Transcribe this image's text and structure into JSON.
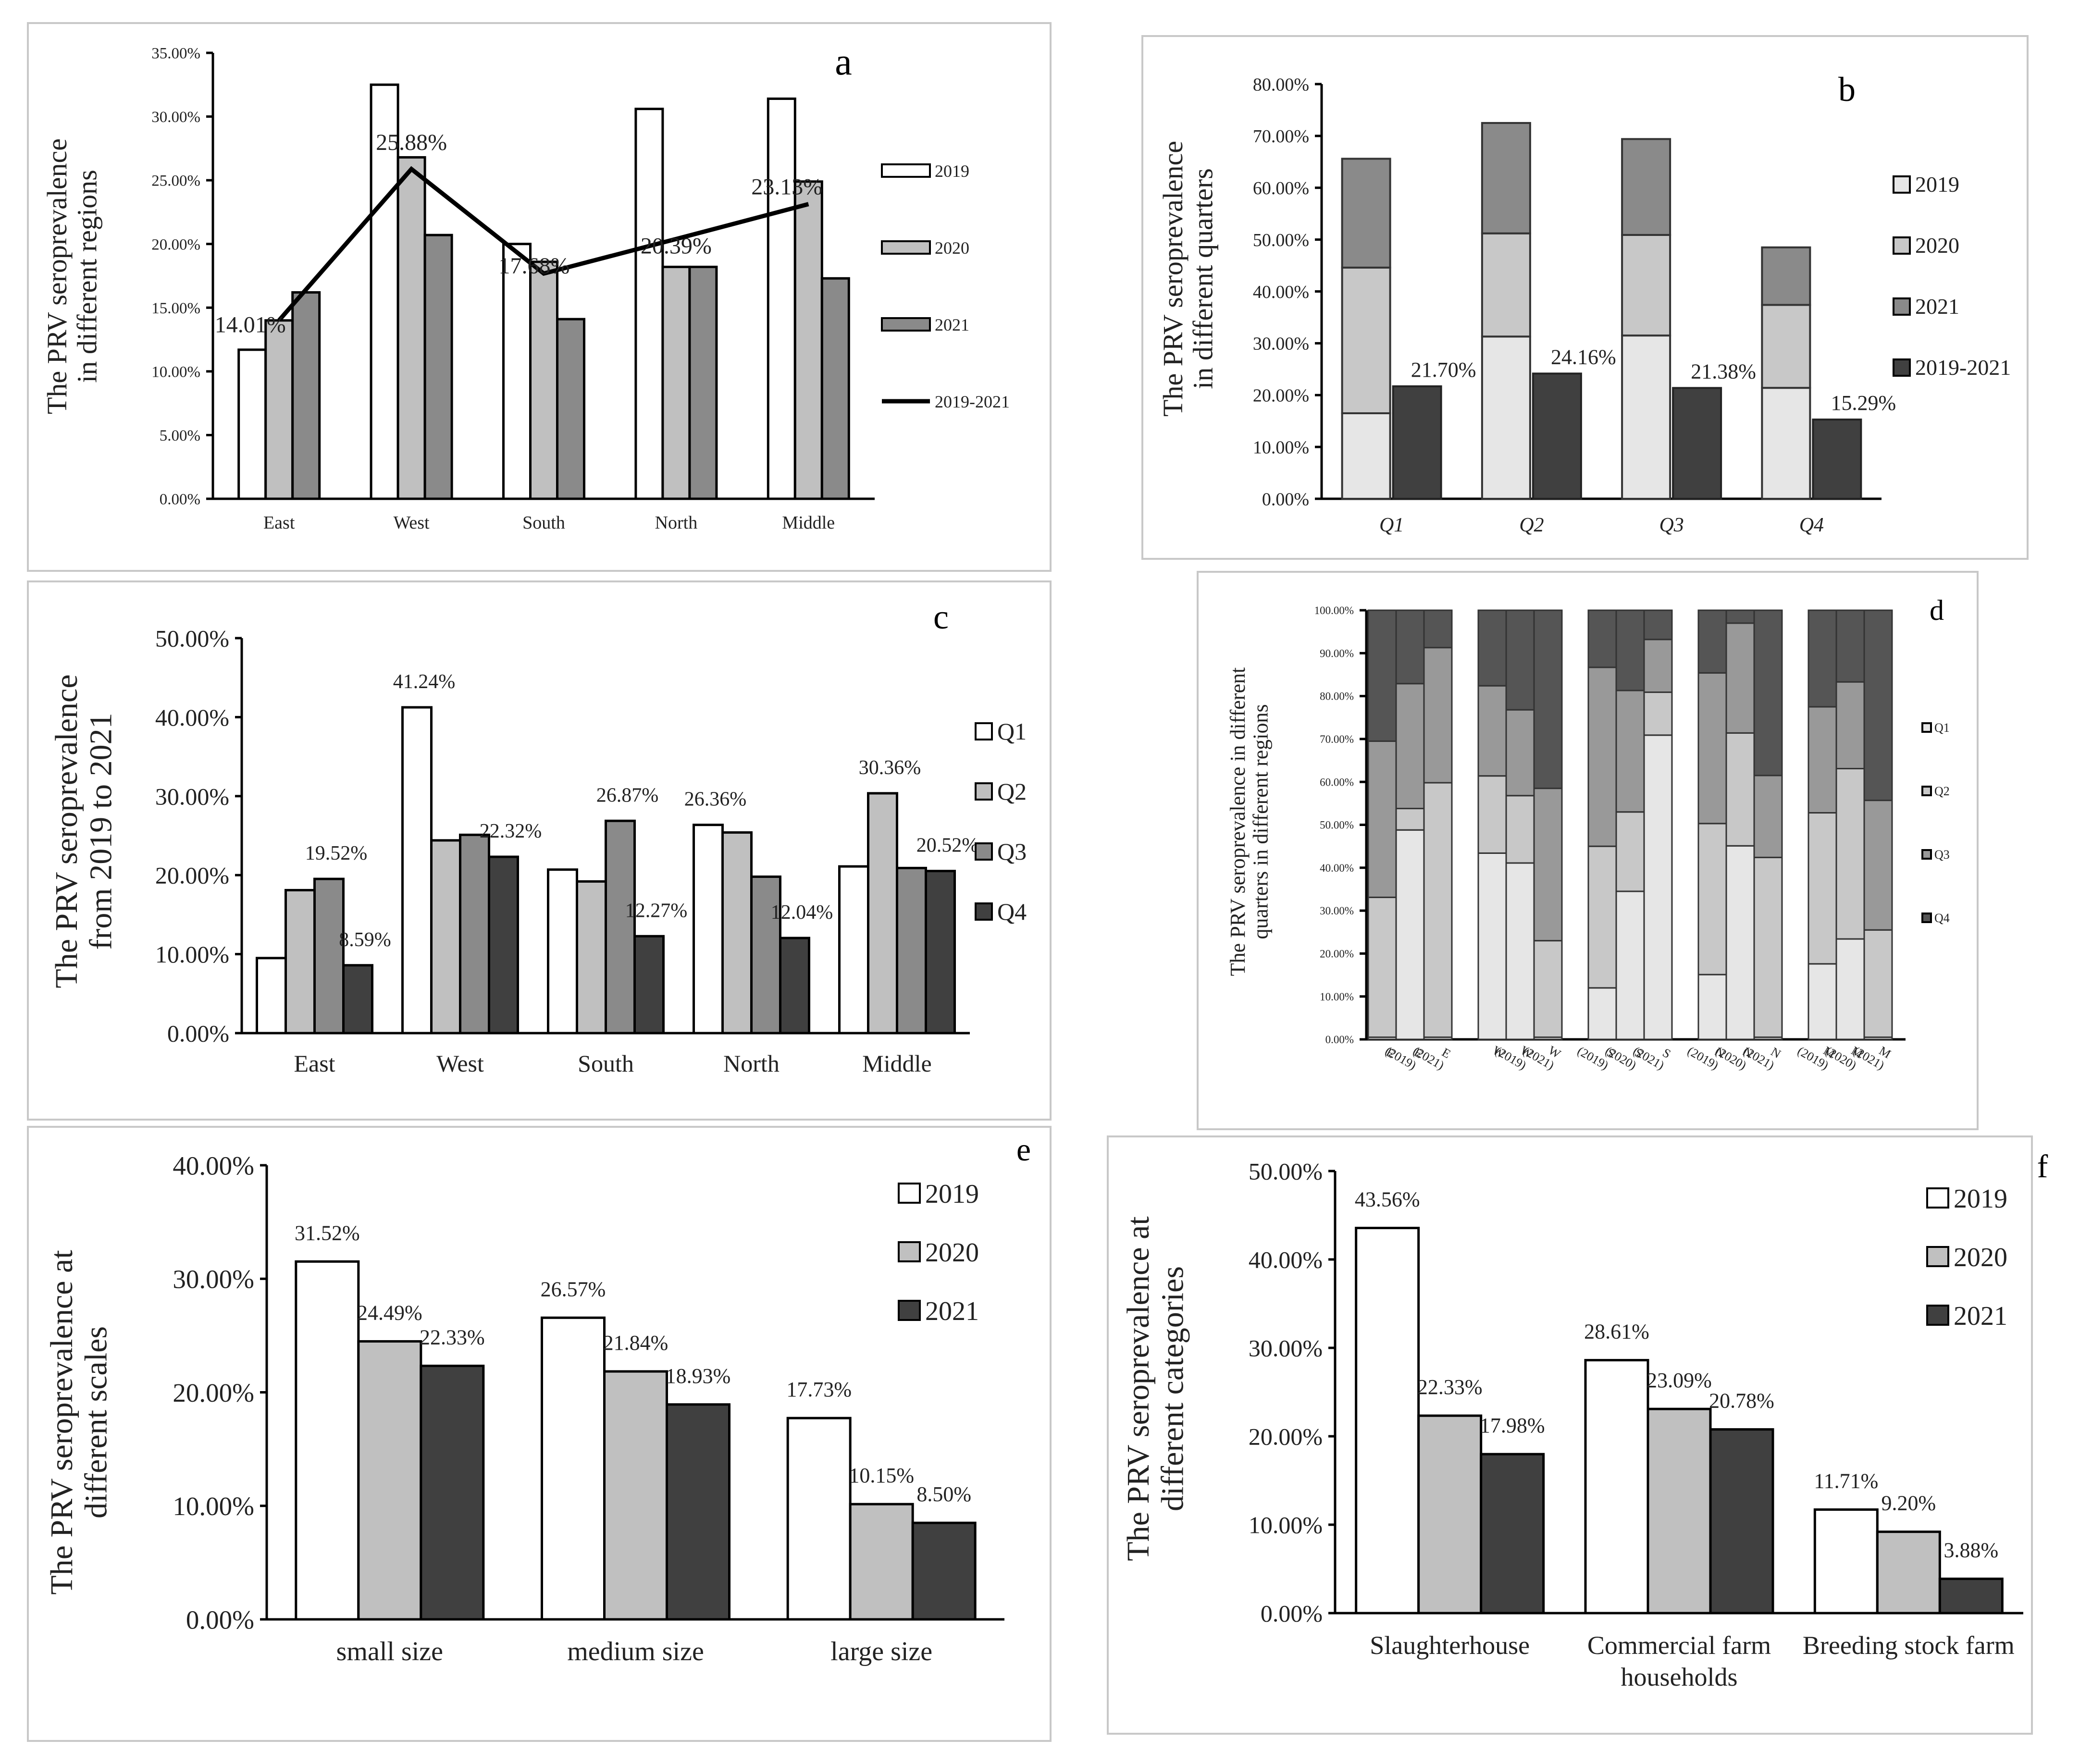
{
  "colors": {
    "white": "#ffffff",
    "light": "#c0c0c0",
    "mid": "#8a8a8a",
    "dark": "#404040",
    "stack_q1": "#e6e6e6",
    "stack_q2": "#c8c8c8",
    "stack_q3": "#999999",
    "stack_q4": "#555555",
    "line": "#000000"
  },
  "chart_data": [
    {
      "id": "a",
      "type": "bar",
      "letter": "a",
      "ylabel": [
        "The PRV seroprevalence",
        "in  different regions"
      ],
      "categories": [
        "East",
        "West",
        "South",
        "North",
        "Middle"
      ],
      "ylim": [
        0,
        35
      ],
      "yticks": [
        "0.00%",
        "5.00%",
        "10.00%",
        "15.00%",
        "20.00%",
        "25.00%",
        "30.00%",
        "35.00%"
      ],
      "series": [
        {
          "name": "2019",
          "values": [
            11.7,
            32.5,
            20.0,
            30.6,
            31.4
          ]
        },
        {
          "name": "2020",
          "values": [
            14.0,
            26.8,
            18.6,
            18.2,
            24.9
          ]
        },
        {
          "name": "2021",
          "values": [
            16.2,
            20.7,
            14.1,
            18.2,
            17.3
          ]
        }
      ],
      "line": {
        "name": "2019-2021",
        "values": [
          14.01,
          25.88,
          17.68,
          20.39,
          23.13
        ]
      },
      "line_labels": [
        "14.01%",
        "25.88%",
        "17.68%",
        "20.39%",
        "23.13%"
      ],
      "legend": [
        "2019",
        "2020",
        "2021",
        "2019-2021"
      ]
    },
    {
      "id": "b",
      "type": "bar",
      "letter": "b",
      "ylabel": [
        "The PRV seroprevalence",
        "in different quarters"
      ],
      "categories": [
        "Q1",
        "Q2",
        "Q3",
        "Q4"
      ],
      "ylim": [
        0,
        80
      ],
      "yticks": [
        "0.00%",
        "10.00%",
        "20.00%",
        "30.00%",
        "40.00%",
        "50.00%",
        "60.00%",
        "70.00%",
        "80.00%"
      ],
      "stack": [
        {
          "name": "2019",
          "values": [
            16.5,
            31.3,
            31.5,
            21.4
          ]
        },
        {
          "name": "2020",
          "values": [
            28.1,
            19.9,
            19.4,
            16.0
          ]
        },
        {
          "name": "2021",
          "values": [
            21.0,
            21.3,
            18.5,
            11.1
          ]
        }
      ],
      "combined": {
        "name": "2019-2021",
        "values": [
          21.7,
          24.16,
          21.38,
          15.29
        ]
      },
      "combined_labels": [
        "21.70%",
        "24.16%",
        "21.38%",
        "15.29%"
      ],
      "legend": [
        "2019",
        "2020",
        "2021",
        "2019-2021"
      ]
    },
    {
      "id": "c",
      "type": "bar",
      "letter": "c",
      "ylabel": [
        "The PRV seroprevalence",
        "from 2019 to 2021"
      ],
      "categories": [
        "East",
        "West",
        "South",
        "North",
        "Middle"
      ],
      "ylim": [
        0,
        50
      ],
      "yticks": [
        "0.00%",
        "10.00%",
        "20.00%",
        "30.00%",
        "40.00%",
        "50.00%"
      ],
      "series": [
        {
          "name": "Q1",
          "values": [
            9.5,
            41.24,
            20.7,
            26.36,
            21.1
          ]
        },
        {
          "name": "Q2",
          "values": [
            18.1,
            24.4,
            19.2,
            25.4,
            30.36
          ]
        },
        {
          "name": "Q3",
          "values": [
            19.52,
            25.1,
            26.87,
            19.8,
            20.9
          ]
        },
        {
          "name": "Q4",
          "values": [
            8.59,
            22.32,
            12.27,
            12.04,
            20.52
          ]
        }
      ],
      "data_labels": [
        {
          "text": "41.24%",
          "cat": 1,
          "series": 0
        },
        {
          "text": "19.52%",
          "cat": 0,
          "series": 2
        },
        {
          "text": "8.59%",
          "cat": 0,
          "series": 3
        },
        {
          "text": "22.32%",
          "cat": 1,
          "series": 3
        },
        {
          "text": "26.87%",
          "cat": 2,
          "series": 2
        },
        {
          "text": "12.27%",
          "cat": 2,
          "series": 3
        },
        {
          "text": "26.36%",
          "cat": 3,
          "series": 0
        },
        {
          "text": "12.04%",
          "cat": 3,
          "series": 3
        },
        {
          "text": "30.36%",
          "cat": 4,
          "series": 1
        },
        {
          "text": "20.52%",
          "cat": 4,
          "series": 3
        }
      ],
      "legend": [
        "Q1",
        "Q2",
        "Q3",
        "Q4"
      ]
    },
    {
      "id": "d",
      "type": "bar",
      "letter": "d",
      "ylabel": [
        "The PRV seroprevalence in different",
        "quarters in different regions"
      ],
      "ylim": [
        0,
        100
      ],
      "yticks": [
        "0.00%",
        "10.00%",
        "20.00%",
        "30.00%",
        "40.00%",
        "50.00%",
        "60.00%",
        "70.00%",
        "80.00%",
        "90.00%",
        "100.00%"
      ],
      "categories": [
        [
          "E",
          ""
        ],
        [
          "E",
          "(2019)"
        ],
        [
          "E",
          "(2021)"
        ],
        [
          "W",
          ""
        ],
        [
          "W",
          "(2019)"
        ],
        [
          "W",
          "(2021)"
        ],
        [
          "S",
          "(2019)"
        ],
        [
          "S",
          "(2020)"
        ],
        [
          "S",
          "(2021)"
        ],
        [
          "N",
          "(2019)"
        ],
        [
          "N",
          "(2020)"
        ],
        [
          "N",
          "(2021)"
        ],
        [
          "M",
          "(2019)"
        ],
        [
          "M",
          "(2020)"
        ],
        [
          "M",
          "(2021)"
        ]
      ],
      "stack": [
        {
          "name": "Q1",
          "values": [
            0.5,
            48.8,
            0.5,
            43.4,
            41.1,
            0.5,
            12.0,
            34.5,
            70.9,
            15.1,
            45.1,
            0.5,
            17.6,
            23.4,
            0.5
          ]
        },
        {
          "name": "Q2",
          "values": [
            32.6,
            5.0,
            59.3,
            18.0,
            15.7,
            22.5,
            33.0,
            18.5,
            10.0,
            35.2,
            26.3,
            41.9,
            35.2,
            39.7,
            25.0
          ]
        },
        {
          "name": "Q3",
          "values": [
            36.4,
            29.1,
            31.5,
            21.0,
            20.0,
            35.5,
            41.7,
            28.3,
            12.3,
            35.1,
            25.6,
            19.1,
            24.7,
            20.2,
            30.2
          ]
        },
        {
          "name": "Q4",
          "values": [
            30.5,
            17.1,
            8.7,
            17.6,
            23.2,
            41.5,
            13.3,
            18.7,
            6.8,
            14.6,
            3.0,
            38.5,
            22.5,
            16.7,
            44.3
          ]
        }
      ],
      "legend": [
        "Q1",
        "Q2",
        "Q3",
        "Q4"
      ]
    },
    {
      "id": "e",
      "type": "bar",
      "letter": "e",
      "ylabel": [
        "The PRV seroprevalence at",
        "different scales"
      ],
      "categories": [
        "small size",
        "medium size",
        "large size"
      ],
      "ylim": [
        0,
        40
      ],
      "yticks": [
        "0.00%",
        "10.00%",
        "20.00%",
        "30.00%",
        "40.00%"
      ],
      "series": [
        {
          "name": "2019",
          "values": [
            31.52,
            26.57,
            17.73
          ]
        },
        {
          "name": "2020",
          "values": [
            24.49,
            21.84,
            10.15
          ]
        },
        {
          "name": "2021",
          "values": [
            22.33,
            18.93,
            8.5
          ]
        }
      ],
      "labels": [
        [
          "31.52%",
          "24.49%",
          "22.33%"
        ],
        [
          "26.57%",
          "21.84%",
          "18.93%"
        ],
        [
          "17.73%",
          "10.15%",
          "8.50%"
        ]
      ],
      "legend": [
        "2019",
        "2020",
        "2021"
      ]
    },
    {
      "id": "f",
      "type": "bar",
      "letter": "f",
      "ylabel": [
        "The PRV seroprevalence at",
        "different categories"
      ],
      "categories": [
        [
          "Slaughterhouse"
        ],
        [
          "Commercial farm",
          "households"
        ],
        [
          "Breeding stock farm"
        ]
      ],
      "ylim": [
        0,
        50
      ],
      "yticks": [
        "0.00%",
        "10.00%",
        "20.00%",
        "30.00%",
        "40.00%",
        "50.00%"
      ],
      "series": [
        {
          "name": "2019",
          "values": [
            43.56,
            28.61,
            11.71
          ]
        },
        {
          "name": "2020",
          "values": [
            22.33,
            23.09,
            9.2
          ]
        },
        {
          "name": "2021",
          "values": [
            17.98,
            20.78,
            3.88
          ]
        }
      ],
      "labels": [
        [
          "43.56%",
          "22.33%",
          "17.98%"
        ],
        [
          "28.61%",
          "23.09%",
          "20.78%"
        ],
        [
          "11.71%",
          "9.20%",
          "3.88%"
        ]
      ],
      "legend": [
        "2019",
        "2020",
        "2021"
      ]
    }
  ]
}
